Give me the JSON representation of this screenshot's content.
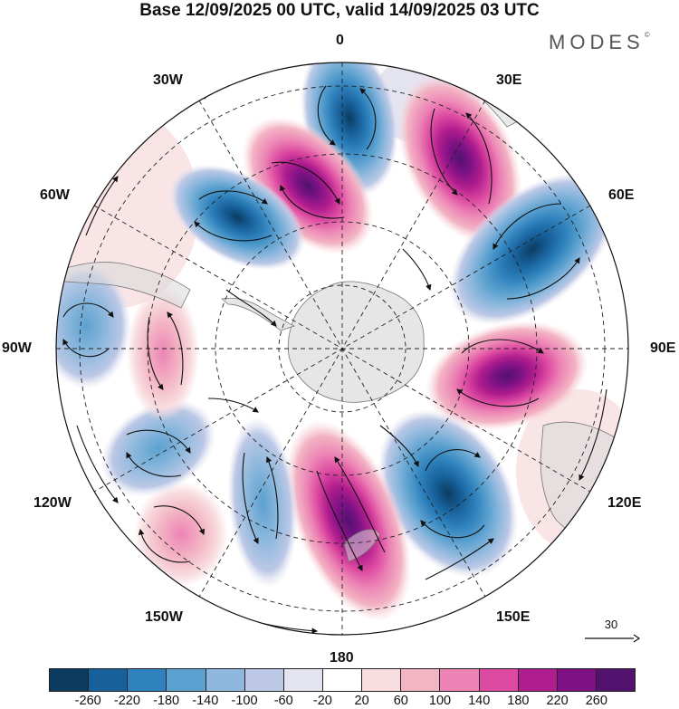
{
  "title": "Base 12/09/2025 00 UTC, valid 14/09/2025 03 UTC",
  "brand": {
    "text": "MODES",
    "mark": "©"
  },
  "longitude_labels": [
    "0",
    "30E",
    "60E",
    "90E",
    "120E",
    "150E",
    "180",
    "150W",
    "120W",
    "90W",
    "60W",
    "30W"
  ],
  "reference_vector": {
    "value": "30"
  },
  "colorbar": {
    "labels": [
      "-260",
      "-220",
      "-180",
      "-140",
      "-100",
      "-60",
      "-20",
      "20",
      "60",
      "100",
      "140",
      "180",
      "220",
      "260"
    ],
    "colors": [
      "#0b3c5f",
      "#17609a",
      "#2f82bd",
      "#5ba1cf",
      "#8eb8dd",
      "#bcc8e6",
      "#e4e4f1",
      "#ffffff",
      "#f8dde0",
      "#f3b4c4",
      "#ec84b5",
      "#dd4aa1",
      "#b01d8e",
      "#7e1285",
      "#52126e"
    ]
  },
  "map": {
    "projection": "south polar stereographic",
    "anomaly_centers": [
      {
        "sign": "negative",
        "level": "-220"
      },
      {
        "sign": "positive",
        "level": "260"
      },
      {
        "sign": "positive",
        "level": "220"
      },
      {
        "sign": "negative",
        "level": "-220"
      },
      {
        "sign": "negative",
        "level": "-220"
      },
      {
        "sign": "positive",
        "level": "220"
      },
      {
        "sign": "negative",
        "level": "-180"
      },
      {
        "sign": "positive",
        "level": "260"
      },
      {
        "sign": "negative",
        "level": "-140"
      },
      {
        "sign": "positive",
        "level": "100"
      },
      {
        "sign": "negative",
        "level": "-140"
      },
      {
        "sign": "positive",
        "level": "140"
      },
      {
        "sign": "negative",
        "level": "-100"
      }
    ]
  }
}
